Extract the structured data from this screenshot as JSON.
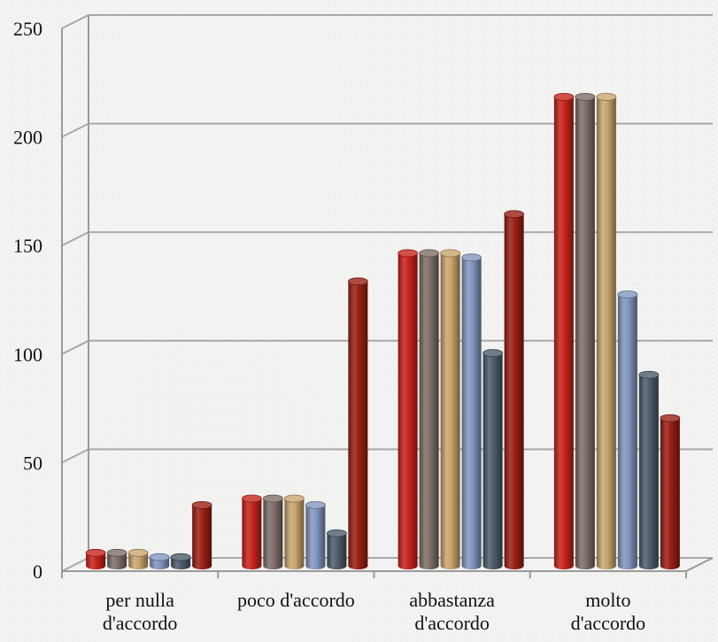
{
  "chart_data": {
    "type": "bar",
    "title": "",
    "xlabel": "",
    "ylabel": "",
    "ylim": [
      0,
      250
    ],
    "yticks": [
      0,
      50,
      100,
      150,
      200,
      250
    ],
    "categories": [
      [
        "per nulla",
        "d'accordo"
      ],
      [
        "poco d'accordo"
      ],
      [
        "abbastanza",
        "d'accordo"
      ],
      [
        "molto",
        "d'accordo"
      ]
    ],
    "series": [
      {
        "color": "#c8231b",
        "values": [
          6,
          31,
          144,
          216
        ]
      },
      {
        "color": "#7e6e68",
        "values": [
          6,
          31,
          144,
          216
        ]
      },
      {
        "color": "#c9a56e",
        "values": [
          6,
          31,
          144,
          216
        ]
      },
      {
        "color": "#8196bf",
        "values": [
          4,
          28,
          142,
          125
        ]
      },
      {
        "color": "#4d5b6b",
        "values": [
          4,
          15,
          98,
          88
        ]
      },
      {
        "color": "#9a1f14",
        "values": [
          28,
          131,
          162,
          68
        ]
      }
    ],
    "grid": true,
    "legend": "none",
    "style": "3d-cylinder"
  }
}
